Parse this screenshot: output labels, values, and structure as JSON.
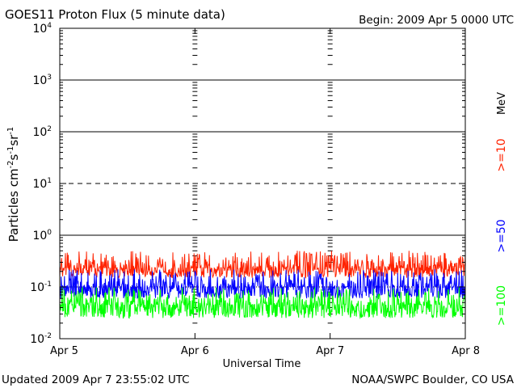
{
  "header": {
    "title": "GOES11 Proton Flux (5 minute data)",
    "begin": "Begin: 2009 Apr 5 0000 UTC"
  },
  "footer": {
    "updated": "Updated 2009 Apr  7 23:55:02 UTC",
    "credit": "NOAA/SWPC Boulder, CO USA"
  },
  "colors": {
    "ge10": "#ff2200",
    "ge50": "#0000ff",
    "ge100": "#00ff00",
    "axis": "#000000"
  },
  "chart_data": {
    "type": "line",
    "title": "GOES11 Proton Flux (5 minute data)",
    "xlabel": "Universal Time",
    "ylabel_html": "Particles cm-2s-1sr-1",
    "ylabel_parts": [
      "Particles cm",
      "-2",
      "s",
      "-1",
      "sr",
      "-1"
    ],
    "y_scale": "log",
    "ylim": [
      0.01,
      10000
    ],
    "y_ticks": [
      {
        "exp": "-2",
        "value": 0.01
      },
      {
        "exp": "-1",
        "value": 0.1
      },
      {
        "exp": "0",
        "value": 1
      },
      {
        "exp": "1",
        "value": 10
      },
      {
        "exp": "2",
        "value": 100
      },
      {
        "exp": "3",
        "value": 1000
      },
      {
        "exp": "4",
        "value": 10000
      }
    ],
    "y_tick_base": "10",
    "x_ticks": [
      "Apr 5",
      "Apr 6",
      "Apr 7",
      "Apr 8"
    ],
    "xlim_days": [
      0,
      3
    ],
    "threshold_lines": [
      {
        "value": 10,
        "style": "dashed"
      },
      {
        "value": 100,
        "style": "solid"
      },
      {
        "value": 1000,
        "style": "solid"
      },
      {
        "value": 1,
        "style": "solid"
      },
      {
        "value": 0.1,
        "style": "dotted"
      }
    ],
    "legend": {
      "unit": "MeV",
      "entries": [
        ">=10",
        ">=50",
        ">=100"
      ],
      "placement": "right"
    },
    "series": [
      {
        "name": ">=10",
        "color": "#ff2200",
        "level_range": [
          0.15,
          0.5
        ],
        "median": 0.23
      },
      {
        "name": ">=50",
        "color": "#0000ff",
        "level_range": [
          0.06,
          0.22
        ],
        "median": 0.1
      },
      {
        "name": ">=100",
        "color": "#00ff00",
        "level_range": [
          0.025,
          0.1
        ],
        "median": 0.045
      }
    ]
  }
}
